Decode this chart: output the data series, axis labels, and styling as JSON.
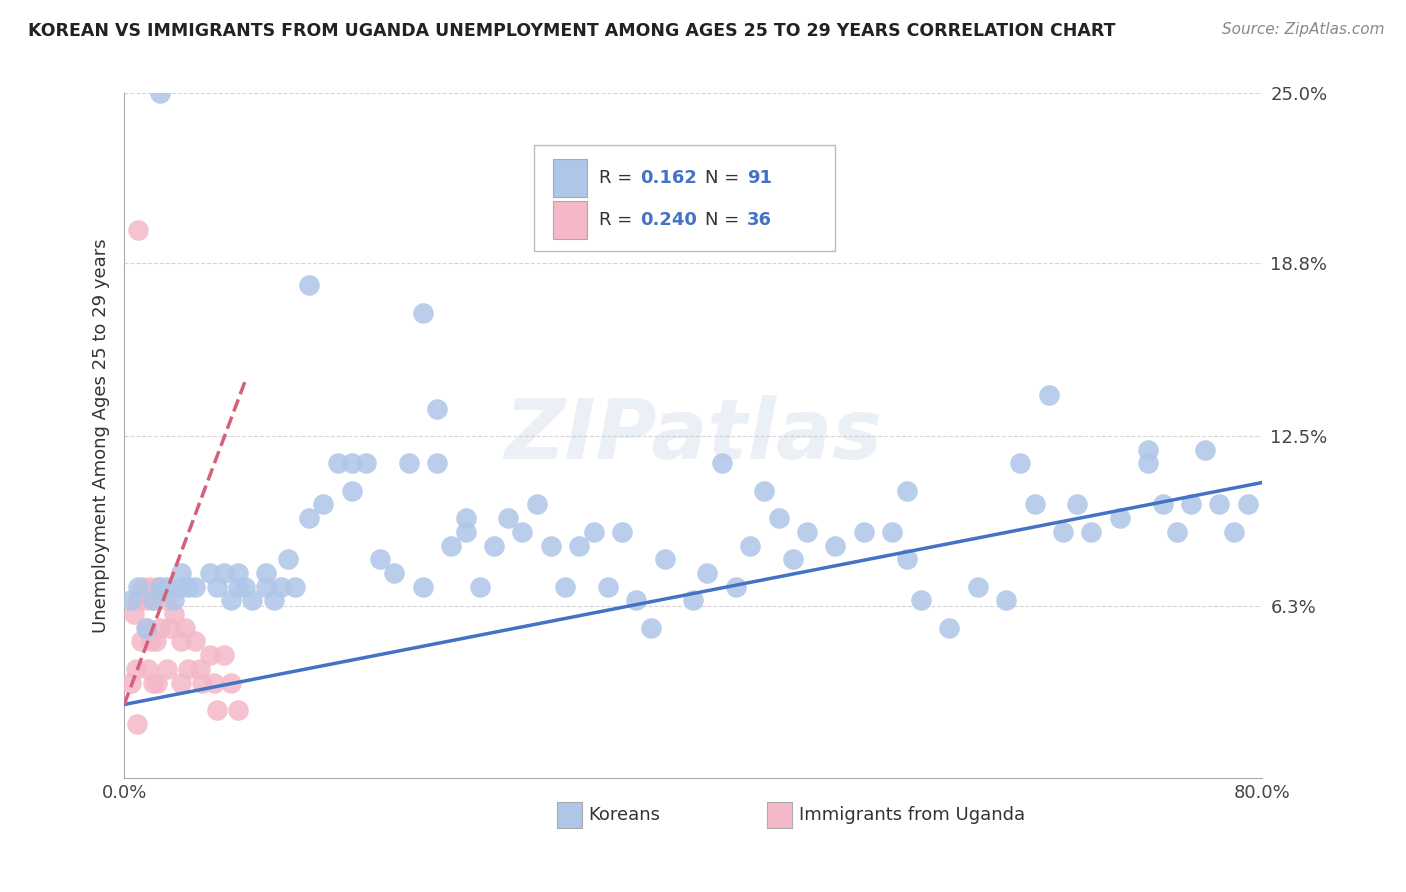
{
  "title": "KOREAN VS IMMIGRANTS FROM UGANDA UNEMPLOYMENT AMONG AGES 25 TO 29 YEARS CORRELATION CHART",
  "source": "Source: ZipAtlas.com",
  "ylabel": "Unemployment Among Ages 25 to 29 years",
  "xlim": [
    0.0,
    0.8
  ],
  "ylim": [
    0.0,
    0.25
  ],
  "xticklabels": [
    "0.0%",
    "80.0%"
  ],
  "ytick_positions": [
    0.0,
    0.063,
    0.125,
    0.188,
    0.25
  ],
  "ytick_labels": [
    "",
    "6.3%",
    "12.5%",
    "18.8%",
    "25.0%"
  ],
  "korean_R": 0.162,
  "korean_N": 91,
  "uganda_R": 0.24,
  "uganda_N": 36,
  "korean_color": "#aec6e8",
  "uganda_color": "#f4b8c8",
  "korean_line_color": "#4472c4",
  "uganda_line_color": "#d4607a",
  "watermark_text": "ZIPatlas",
  "background_color": "#ffffff",
  "grid_color": "#cccccc",
  "korean_line_start_y": 0.027,
  "korean_line_end_y": 0.108,
  "uganda_line_start_y": 0.027,
  "uganda_line_end_y": 0.145,
  "uganda_line_end_x": 0.085,
  "korean_x": [
    0.005,
    0.01,
    0.015,
    0.02,
    0.025,
    0.03,
    0.035,
    0.04,
    0.04,
    0.045,
    0.05,
    0.06,
    0.065,
    0.07,
    0.075,
    0.08,
    0.08,
    0.085,
    0.09,
    0.1,
    0.1,
    0.105,
    0.11,
    0.115,
    0.12,
    0.13,
    0.14,
    0.15,
    0.16,
    0.16,
    0.17,
    0.18,
    0.19,
    0.2,
    0.21,
    0.22,
    0.23,
    0.24,
    0.24,
    0.25,
    0.26,
    0.27,
    0.28,
    0.29,
    0.3,
    0.31,
    0.32,
    0.33,
    0.34,
    0.35,
    0.36,
    0.37,
    0.38,
    0.4,
    0.41,
    0.42,
    0.43,
    0.44,
    0.45,
    0.46,
    0.47,
    0.48,
    0.5,
    0.52,
    0.54,
    0.55,
    0.56,
    0.58,
    0.6,
    0.62,
    0.63,
    0.64,
    0.65,
    0.66,
    0.67,
    0.68,
    0.7,
    0.72,
    0.73,
    0.74,
    0.75,
    0.76,
    0.77,
    0.78,
    0.79,
    0.025,
    0.13,
    0.21,
    0.22,
    0.55,
    0.72
  ],
  "korean_y": [
    0.065,
    0.07,
    0.055,
    0.065,
    0.07,
    0.07,
    0.065,
    0.075,
    0.07,
    0.07,
    0.07,
    0.075,
    0.07,
    0.075,
    0.065,
    0.07,
    0.075,
    0.07,
    0.065,
    0.075,
    0.07,
    0.065,
    0.07,
    0.08,
    0.07,
    0.095,
    0.1,
    0.115,
    0.115,
    0.105,
    0.115,
    0.08,
    0.075,
    0.115,
    0.07,
    0.115,
    0.085,
    0.09,
    0.095,
    0.07,
    0.085,
    0.095,
    0.09,
    0.1,
    0.085,
    0.07,
    0.085,
    0.09,
    0.07,
    0.09,
    0.065,
    0.055,
    0.08,
    0.065,
    0.075,
    0.115,
    0.07,
    0.085,
    0.105,
    0.095,
    0.08,
    0.09,
    0.085,
    0.09,
    0.09,
    0.08,
    0.065,
    0.055,
    0.07,
    0.065,
    0.115,
    0.1,
    0.14,
    0.09,
    0.1,
    0.09,
    0.095,
    0.12,
    0.1,
    0.09,
    0.1,
    0.12,
    0.1,
    0.09,
    0.1,
    0.25,
    0.18,
    0.17,
    0.135,
    0.105,
    0.115
  ],
  "uganda_x": [
    0.005,
    0.007,
    0.008,
    0.009,
    0.01,
    0.01,
    0.012,
    0.013,
    0.015,
    0.016,
    0.017,
    0.018,
    0.019,
    0.02,
    0.02,
    0.022,
    0.023,
    0.024,
    0.025,
    0.03,
    0.03,
    0.032,
    0.035,
    0.04,
    0.04,
    0.043,
    0.045,
    0.05,
    0.053,
    0.055,
    0.06,
    0.063,
    0.065,
    0.07,
    0.075,
    0.08
  ],
  "uganda_y": [
    0.035,
    0.06,
    0.04,
    0.02,
    0.2,
    0.065,
    0.05,
    0.07,
    0.065,
    0.055,
    0.04,
    0.07,
    0.05,
    0.035,
    0.065,
    0.05,
    0.035,
    0.07,
    0.055,
    0.065,
    0.04,
    0.055,
    0.06,
    0.05,
    0.035,
    0.055,
    0.04,
    0.05,
    0.04,
    0.035,
    0.045,
    0.035,
    0.025,
    0.045,
    0.035,
    0.025
  ]
}
